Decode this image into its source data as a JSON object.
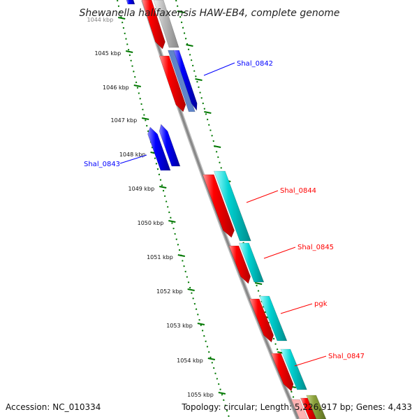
{
  "title": "Shewanella halifaxensis HAW-EB4, complete genome",
  "footer": {
    "accession": "Accession: NC_010334",
    "summary": "Topology: circular; Length: 5,226,917 bp; Genes: 4,433"
  },
  "colors": {
    "forward_cds": "#ff0000",
    "reverse_cds": "#0000ff",
    "teal_cds": "#00cccc",
    "scale_dots": "#007700",
    "backbone": "#888888",
    "gray_cds": "#bbbbbb",
    "olive_cds": "#8aa03a"
  },
  "scale": {
    "ticks": [
      {
        "label": "1044 kbp"
      },
      {
        "label": "1045 kbp"
      },
      {
        "label": "1046 kbp"
      },
      {
        "label": "1047 kbp"
      },
      {
        "label": "1048 kbp"
      },
      {
        "label": "1049 kbp"
      },
      {
        "label": "1050 kbp"
      },
      {
        "label": "1051 kbp"
      },
      {
        "label": "1052 kbp"
      },
      {
        "label": "1053 kbp"
      },
      {
        "label": "1054 kbp"
      },
      {
        "label": "1055 kbp"
      }
    ]
  },
  "genes": [
    {
      "label": "Shal_0842",
      "color": "#0000ff"
    },
    {
      "label": "Shal_0843",
      "color": "#0000ff"
    },
    {
      "label": "Shal_0844",
      "color": "#ff0000"
    },
    {
      "label": "Shal_0845",
      "color": "#ff0000"
    },
    {
      "label": "pgk",
      "color": "#ff0000"
    },
    {
      "label": "Shal_0847",
      "color": "#ff0000"
    }
  ]
}
